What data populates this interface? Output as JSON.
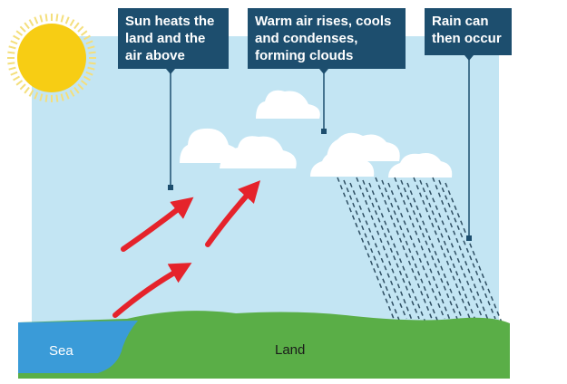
{
  "callouts": {
    "sun": "Sun heats the\nland and the\nair above",
    "clouds": "Warm air rises, cools\nand condenses,\nforming clouds",
    "rain": "Rain can\nthen occur"
  },
  "labels": {
    "sea": "Sea",
    "land": "Land"
  },
  "colors": {
    "sky": "#c3e5f3",
    "sun": "#f7cd14",
    "sun_rays": "#f4df7c",
    "callout_bg": "#1d4e6e",
    "arrow": "#e5232b",
    "cloud": "#ffffff",
    "rain": "#2f4f63",
    "land": "#5aae47",
    "sea": "#3a9bd8"
  },
  "icons": [
    "sun-icon",
    "cloud-icon",
    "rain-icon",
    "arrow-icon"
  ]
}
